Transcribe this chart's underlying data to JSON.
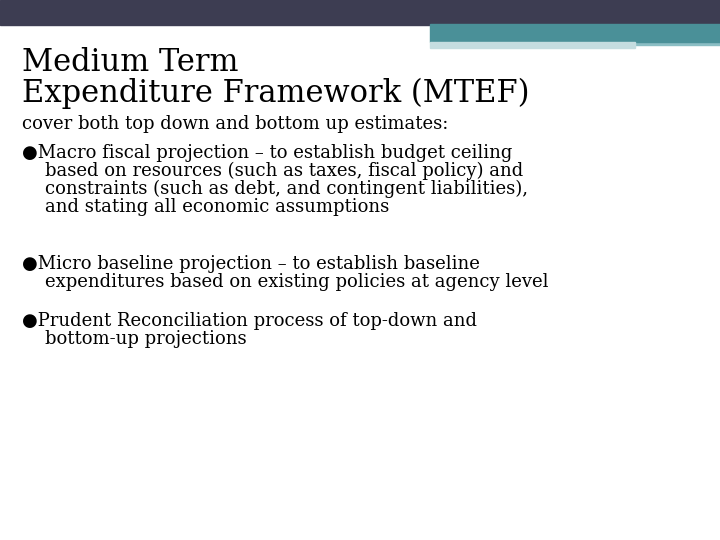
{
  "title_line1": "Medium Term",
  "title_line2": "Expenditure Framework (MTEF)",
  "subtitle": "cover both top down and bottom up estimates:",
  "bullet1_line1": "●Macro fiscal projection – to establish budget ceiling",
  "bullet1_line2": "    based on resources (such as taxes, fiscal policy) and",
  "bullet1_line3": "    constraints (such as debt, and contingent liabilities),",
  "bullet1_line4": "    and stating all economic assumptions",
  "bullet2_line1": "●Micro baseline projection – to establish baseline",
  "bullet2_line2": "    expenditures based on existing policies at agency level",
  "bullet3_line1": "●Prudent Reconciliation process of top-down and",
  "bullet3_line2": "    bottom-up projections",
  "bg_color": "#ffffff",
  "header_dark": "#3d3d52",
  "header_teal": "#4a9098",
  "header_light_blue": "#8bbec4",
  "header_pale": "#c5dde0",
  "text_color": "#000000",
  "title_fontsize": 22,
  "subtitle_fontsize": 13,
  "body_fontsize": 13
}
